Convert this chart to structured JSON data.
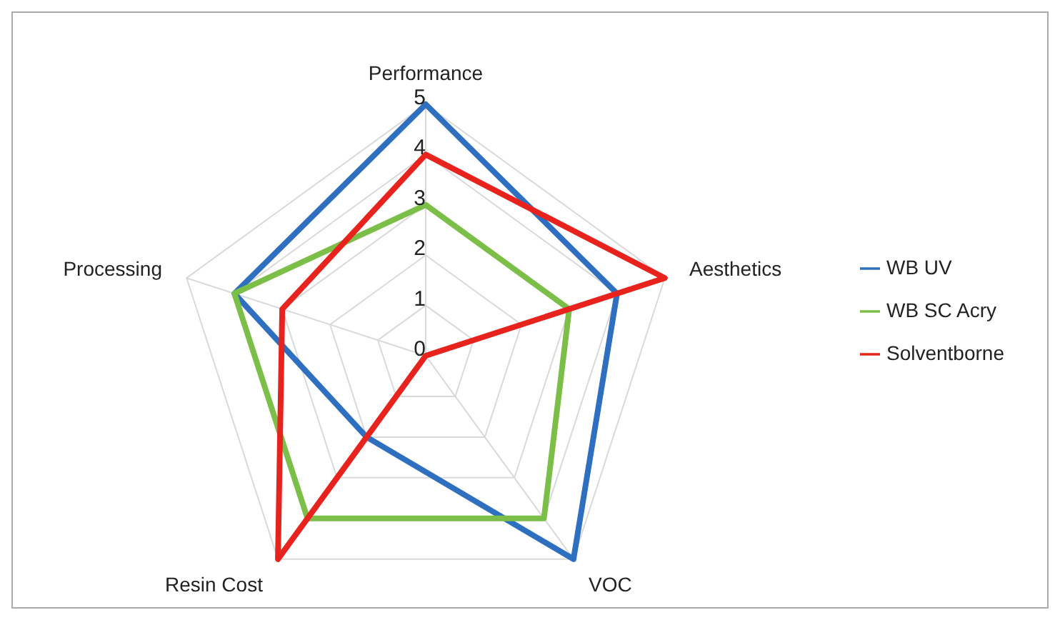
{
  "chart_data": {
    "type": "radar",
    "categories": [
      "Performance",
      "Aesthetics",
      "VOC",
      "Resin Cost",
      "Processing"
    ],
    "series": [
      {
        "name": "WB UV",
        "color": "#2e6fc0",
        "values": [
          5,
          4,
          5,
          2,
          4
        ]
      },
      {
        "name": "WB SC Acry",
        "color": "#7cbf48",
        "values": [
          3,
          3,
          4,
          4,
          4
        ]
      },
      {
        "name": "Solventborne",
        "color": "#e8231e",
        "values": [
          4,
          5,
          0,
          5,
          3
        ]
      }
    ],
    "ylim": [
      0,
      5
    ],
    "yticks": [
      0,
      1,
      2,
      3,
      4,
      5
    ],
    "grid": true,
    "legend": "right",
    "marker": "none"
  }
}
